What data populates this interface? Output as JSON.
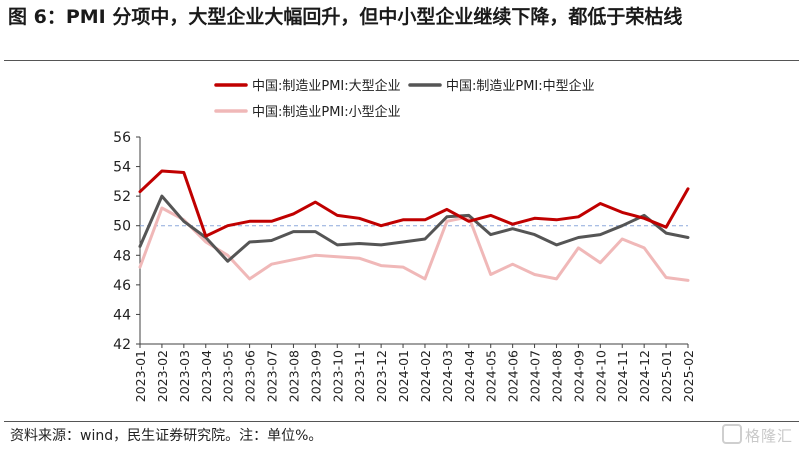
{
  "title": "图 6：PMI 分项中，大型企业大幅回升，但中小型企业继续下降，都低于荣枯线",
  "source": "资料来源：wind，民生证券研究院。注：单位%。",
  "watermark": "格隆汇",
  "colors": {
    "large": "#c00000",
    "medium": "#555555",
    "small": "#f0b8b8",
    "ref": "#8ea9db",
    "axis": "#404040"
  },
  "chart_data": {
    "type": "line",
    "title": "",
    "xlabel": "",
    "ylabel": "",
    "ylim": [
      42,
      56
    ],
    "yticks": [
      42,
      44,
      46,
      48,
      50,
      52,
      54,
      56
    ],
    "reference_line": 50,
    "legend_position": "top",
    "categories": [
      "2023-01",
      "2023-02",
      "2023-03",
      "2023-04",
      "2023-05",
      "2023-06",
      "2023-07",
      "2023-08",
      "2023-09",
      "2023-10",
      "2023-11",
      "2023-12",
      "2024-01",
      "2024-02",
      "2024-03",
      "2024-04",
      "2024-05",
      "2024-06",
      "2024-07",
      "2024-08",
      "2024-09",
      "2024-10",
      "2024-11",
      "2024-12",
      "2025-01",
      "2025-02"
    ],
    "series": [
      {
        "name": "中国:制造业PMI:大型企业",
        "color": "#c00000",
        "values": [
          52.3,
          53.7,
          53.6,
          49.3,
          50.0,
          50.3,
          50.3,
          50.8,
          51.6,
          50.7,
          50.5,
          50.0,
          50.4,
          50.4,
          51.1,
          50.3,
          50.7,
          50.1,
          50.5,
          50.4,
          50.6,
          51.5,
          50.9,
          50.5,
          49.9,
          52.5
        ]
      },
      {
        "name": "中国:制造业PMI:中型企业",
        "color": "#555555",
        "values": [
          48.6,
          52.0,
          50.3,
          49.2,
          47.6,
          48.9,
          49.0,
          49.6,
          49.6,
          48.7,
          48.8,
          48.7,
          48.9,
          49.1,
          50.6,
          50.7,
          49.4,
          49.8,
          49.4,
          48.7,
          49.2,
          49.4,
          50.0,
          50.7,
          49.5,
          49.2
        ]
      },
      {
        "name": "中国:制造业PMI:小型企业",
        "color": "#f0b8b8",
        "values": [
          47.2,
          51.2,
          50.4,
          48.9,
          48.0,
          46.4,
          47.4,
          47.7,
          48.0,
          47.9,
          47.8,
          47.3,
          47.2,
          46.4,
          50.3,
          50.6,
          46.7,
          47.4,
          46.7,
          46.4,
          48.5,
          47.5,
          49.1,
          48.5,
          46.5,
          46.3
        ]
      }
    ]
  }
}
